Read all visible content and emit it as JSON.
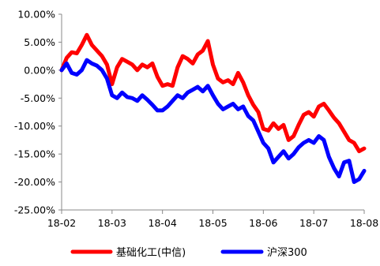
{
  "chart_data": {
    "type": "line",
    "title": "",
    "xlabel": "",
    "ylabel": "",
    "ylim": [
      -0.25,
      0.1
    ],
    "y_tick_values": [
      0.1,
      0.05,
      0.0,
      -0.05,
      -0.1,
      -0.15,
      -0.2,
      -0.25
    ],
    "y_tick_labels": [
      "10.00%",
      "5.00%",
      "0.00%",
      "-5.00%",
      "-10.00%",
      "-15.00%",
      "-20.00%",
      "-25.00%"
    ],
    "x_tick_labels": [
      "18-02",
      "18-03",
      "18-04",
      "18-05",
      "18-06",
      "18-07",
      "18-08"
    ],
    "xlim": [
      0,
      6
    ],
    "grid": false,
    "legend_position": "bottom",
    "x": [
      0.0,
      0.1,
      0.2,
      0.3,
      0.4,
      0.5,
      0.6,
      0.7,
      0.8,
      0.9,
      1.0,
      1.1,
      1.2,
      1.3,
      1.4,
      1.5,
      1.6,
      1.7,
      1.8,
      1.9,
      2.0,
      2.1,
      2.2,
      2.3,
      2.4,
      2.5,
      2.6,
      2.7,
      2.8,
      2.9,
      3.0,
      3.1,
      3.2,
      3.3,
      3.4,
      3.5,
      3.6,
      3.7,
      3.8,
      3.9,
      4.0,
      4.1,
      4.2,
      4.3,
      4.4,
      4.5,
      4.6,
      4.7,
      4.8,
      4.9,
      5.0,
      5.1,
      5.2,
      5.3,
      5.4,
      5.5,
      5.6,
      5.7,
      5.8,
      5.9,
      6.0
    ],
    "series": [
      {
        "name": "基础化工(中信)",
        "color": "#ff0000",
        "values": [
          0.0,
          0.022,
          0.032,
          0.03,
          0.045,
          0.063,
          0.045,
          0.035,
          0.025,
          0.01,
          -0.025,
          0.005,
          0.02,
          0.015,
          0.01,
          0.0,
          0.01,
          0.005,
          0.012,
          -0.012,
          -0.028,
          -0.025,
          -0.028,
          0.005,
          0.025,
          0.02,
          0.012,
          0.028,
          0.035,
          0.052,
          0.01,
          -0.015,
          -0.022,
          -0.018,
          -0.025,
          -0.005,
          -0.022,
          -0.045,
          -0.062,
          -0.075,
          -0.105,
          -0.108,
          -0.095,
          -0.105,
          -0.098,
          -0.125,
          -0.118,
          -0.098,
          -0.08,
          -0.075,
          -0.083,
          -0.065,
          -0.06,
          -0.072,
          -0.085,
          -0.095,
          -0.11,
          -0.125,
          -0.13,
          -0.145,
          -0.14
        ]
      },
      {
        "name": "沪深300",
        "color": "#0000ff",
        "values": [
          0.0,
          0.012,
          -0.005,
          -0.008,
          0.0,
          0.018,
          0.012,
          0.008,
          0.0,
          -0.015,
          -0.045,
          -0.05,
          -0.04,
          -0.048,
          -0.05,
          -0.055,
          -0.045,
          -0.053,
          -0.062,
          -0.072,
          -0.072,
          -0.065,
          -0.055,
          -0.045,
          -0.05,
          -0.04,
          -0.035,
          -0.03,
          -0.038,
          -0.028,
          -0.045,
          -0.06,
          -0.07,
          -0.065,
          -0.06,
          -0.07,
          -0.065,
          -0.082,
          -0.09,
          -0.11,
          -0.13,
          -0.14,
          -0.165,
          -0.155,
          -0.145,
          -0.158,
          -0.15,
          -0.138,
          -0.13,
          -0.125,
          -0.13,
          -0.118,
          -0.125,
          -0.155,
          -0.175,
          -0.19,
          -0.165,
          -0.162,
          -0.2,
          -0.195,
          -0.18
        ]
      }
    ]
  }
}
